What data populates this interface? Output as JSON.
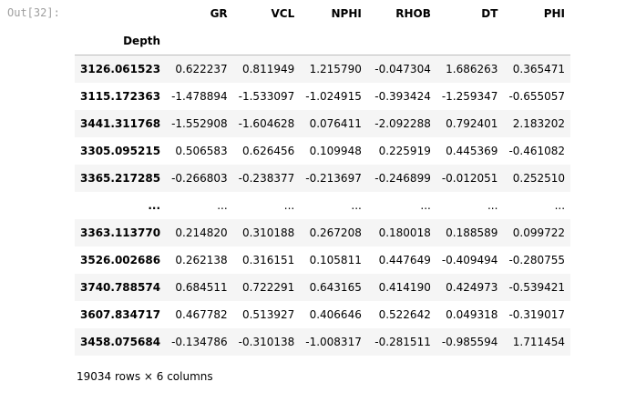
{
  "prompt": "Out[32]:",
  "table": {
    "columns": [
      "GR",
      "VCL",
      "NPHI",
      "RHOB",
      "DT",
      "PHI"
    ],
    "index_name": "Depth",
    "rows": [
      {
        "index": "3126.061523",
        "values": [
          "0.622237",
          "0.811949",
          "1.215790",
          "-0.047304",
          "1.686263",
          "0.365471"
        ]
      },
      {
        "index": "3115.172363",
        "values": [
          "-1.478894",
          "-1.533097",
          "-1.024915",
          "-0.393424",
          "-1.259347",
          "-0.655057"
        ]
      },
      {
        "index": "3441.311768",
        "values": [
          "-1.552908",
          "-1.604628",
          "0.076411",
          "-2.092288",
          "0.792401",
          "2.183202"
        ]
      },
      {
        "index": "3305.095215",
        "values": [
          "0.506583",
          "0.626456",
          "0.109948",
          "0.225919",
          "0.445369",
          "-0.461082"
        ]
      },
      {
        "index": "3365.217285",
        "values": [
          "-0.266803",
          "-0.238377",
          "-0.213697",
          "-0.246899",
          "-0.012051",
          "0.252510"
        ]
      },
      {
        "index": "...",
        "values": [
          "...",
          "...",
          "...",
          "...",
          "...",
          "..."
        ]
      },
      {
        "index": "3363.113770",
        "values": [
          "0.214820",
          "0.310188",
          "0.267208",
          "0.180018",
          "0.188589",
          "0.099722"
        ]
      },
      {
        "index": "3526.002686",
        "values": [
          "0.262138",
          "0.316151",
          "0.105811",
          "0.447649",
          "-0.409494",
          "-0.280755"
        ]
      },
      {
        "index": "3740.788574",
        "values": [
          "0.684511",
          "0.722291",
          "0.643165",
          "0.414190",
          "0.424973",
          "-0.539421"
        ]
      },
      {
        "index": "3607.834717",
        "values": [
          "0.467782",
          "0.513927",
          "0.406646",
          "0.522642",
          "0.049318",
          "-0.319017"
        ]
      },
      {
        "index": "3458.075684",
        "values": [
          "-0.134786",
          "-0.310138",
          "-1.008317",
          "-0.281511",
          "-0.985594",
          "1.711454"
        ]
      }
    ]
  },
  "shape": "19034 rows × 6 columns"
}
